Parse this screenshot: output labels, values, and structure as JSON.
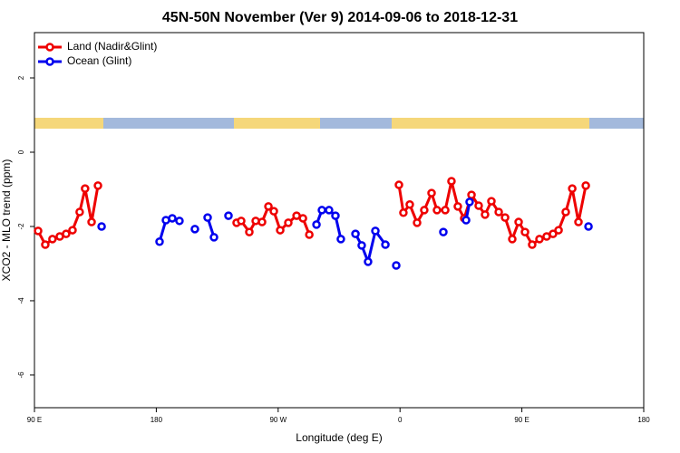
{
  "chart_data": {
    "type": "line",
    "title": "45N-50N November (Ver 9)   2014-09-06 to 2018-12-31",
    "x_label": "Longitude (deg E)",
    "y_label": "XCO2 - MLO trend (ppm)",
    "xlim": [
      90,
      540
    ],
    "ylim": [
      -6.88,
      3.22
    ],
    "xticks": [
      {
        "value": 90,
        "label": "90 E"
      },
      {
        "value": 180,
        "label": "180"
      },
      {
        "value": 270,
        "label": "90 W"
      },
      {
        "value": 360,
        "label": "0"
      },
      {
        "value": 450,
        "label": "90 E"
      },
      {
        "value": 540,
        "label": "180"
      }
    ],
    "yticks": [
      -6,
      -4,
      -2,
      0,
      2
    ],
    "legend": "top-left",
    "series": [
      {
        "name": "Land (Nadir&Glint)",
        "color": "#ee0000",
        "x": [
          92.7,
          98,
          103.3,
          108.7,
          113.4,
          118.1,
          123.4,
          127.4,
          132.2,
          136.9,
          null,
          239.3,
          242.7,
          248.7,
          253.4,
          258.1,
          262.8,
          266.8,
          271.5,
          277.5,
          283.6,
          288.3,
          293,
          null,
          359.2,
          362.5,
          367.2,
          372.6,
          377.9,
          383.3,
          387.3,
          393.4,
          398,
          402.7,
          407.4,
          412.8,
          418.1,
          422.8,
          427.5,
          432.9,
          437.6,
          442.9,
          447.6,
          452.3,
          457.6,
          463,
          468.3,
          473,
          477.1,
          482.4,
          487.2,
          491.8,
          497.2
        ],
        "values": [
          -2.12,
          -2.49,
          -2.34,
          -2.27,
          -2.2,
          -2.1,
          -1.61,
          -0.98,
          -1.88,
          -0.9,
          null,
          -1.9,
          -1.85,
          -2.15,
          -1.85,
          -1.88,
          -1.46,
          -1.59,
          -2.1,
          -1.9,
          -1.71,
          -1.78,
          -2.22,
          null,
          -0.88,
          -1.63,
          -1.41,
          -1.9,
          -1.56,
          -1.1,
          -1.56,
          -1.56,
          -0.78,
          -1.46,
          -1.78,
          -1.15,
          -1.44,
          -1.68,
          -1.32,
          -1.61,
          -1.76,
          -2.34,
          -1.88,
          -2.15,
          -2.49,
          -2.34,
          -2.27,
          -2.2,
          -2.1,
          -1.61,
          -0.98,
          -1.88,
          -0.9
        ]
      },
      {
        "name": "Ocean (Glint)",
        "color": "#0000ee",
        "x": [
          139.6,
          null,
          182.4,
          187.1,
          191.8,
          197.1,
          null,
          208.5,
          null,
          217.9,
          222.6,
          null,
          233.3,
          null,
          298.3,
          302.3,
          307.6,
          312.3,
          316.3,
          null,
          327.1,
          331.7,
          336.4,
          341.8,
          349.2,
          null,
          357.2,
          null,
          392,
          null,
          408.8,
          411.4,
          null,
          499.2
        ],
        "values": [
          -2,
          null,
          -2.41,
          -1.83,
          -1.78,
          -1.85,
          null,
          -2.07,
          null,
          -1.76,
          -2.29,
          null,
          -1.71,
          null,
          -1.95,
          -1.56,
          -1.56,
          -1.71,
          -2.34,
          null,
          -2.2,
          -2.51,
          -2.95,
          -2.12,
          -2.49,
          null,
          -3.05,
          null,
          -2.15,
          null,
          -1.83,
          -1.34,
          null,
          -2
        ]
      }
    ]
  }
}
